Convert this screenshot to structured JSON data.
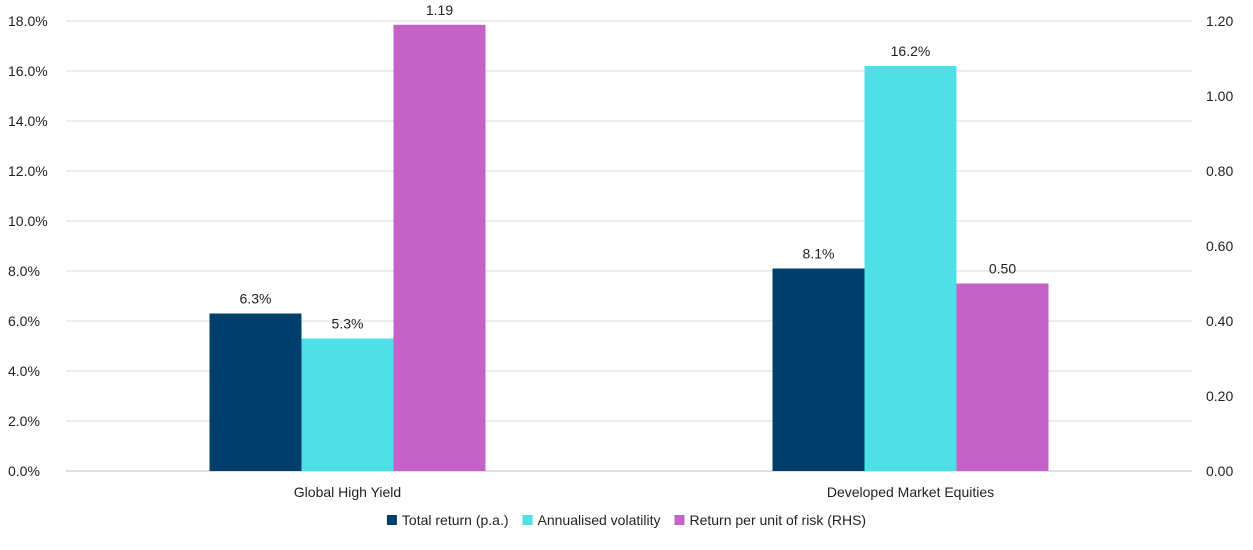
{
  "chart_data": {
    "type": "bar",
    "categories": [
      "Global High Yield",
      "Developed Market Equities"
    ],
    "series": [
      {
        "name": "Total return (p.a.)",
        "axis": "left",
        "color": "#003f6b",
        "values": [
          6.3,
          8.1
        ],
        "labels": [
          "6.3%",
          "8.1%"
        ]
      },
      {
        "name": "Annualised volatility",
        "axis": "left",
        "color": "#4fdfe6",
        "values": [
          5.3,
          16.2
        ],
        "labels": [
          "5.3%",
          "16.2%"
        ]
      },
      {
        "name": "Return per unit of risk (RHS)",
        "axis": "right",
        "color": "#c562c8",
        "values": [
          1.19,
          0.5
        ],
        "labels": [
          "1.19",
          "0.50"
        ]
      }
    ],
    "y_left": {
      "ylim": [
        0,
        18
      ],
      "ticks": [
        0,
        2,
        4,
        6,
        8,
        10,
        12,
        14,
        16,
        18
      ],
      "tick_labels": [
        "0.0%",
        "2.0%",
        "4.0%",
        "6.0%",
        "8.0%",
        "10.0%",
        "12.0%",
        "14.0%",
        "16.0%",
        "18.0%"
      ]
    },
    "y_right": {
      "ylim": [
        0,
        1.2
      ],
      "ticks": [
        0,
        0.2,
        0.4,
        0.6,
        0.8,
        1.0,
        1.2
      ],
      "tick_labels": [
        "0.00",
        "0.20",
        "0.40",
        "0.60",
        "0.80",
        "1.00",
        "1.20"
      ]
    },
    "grid": true,
    "legend_position": "bottom-center"
  }
}
